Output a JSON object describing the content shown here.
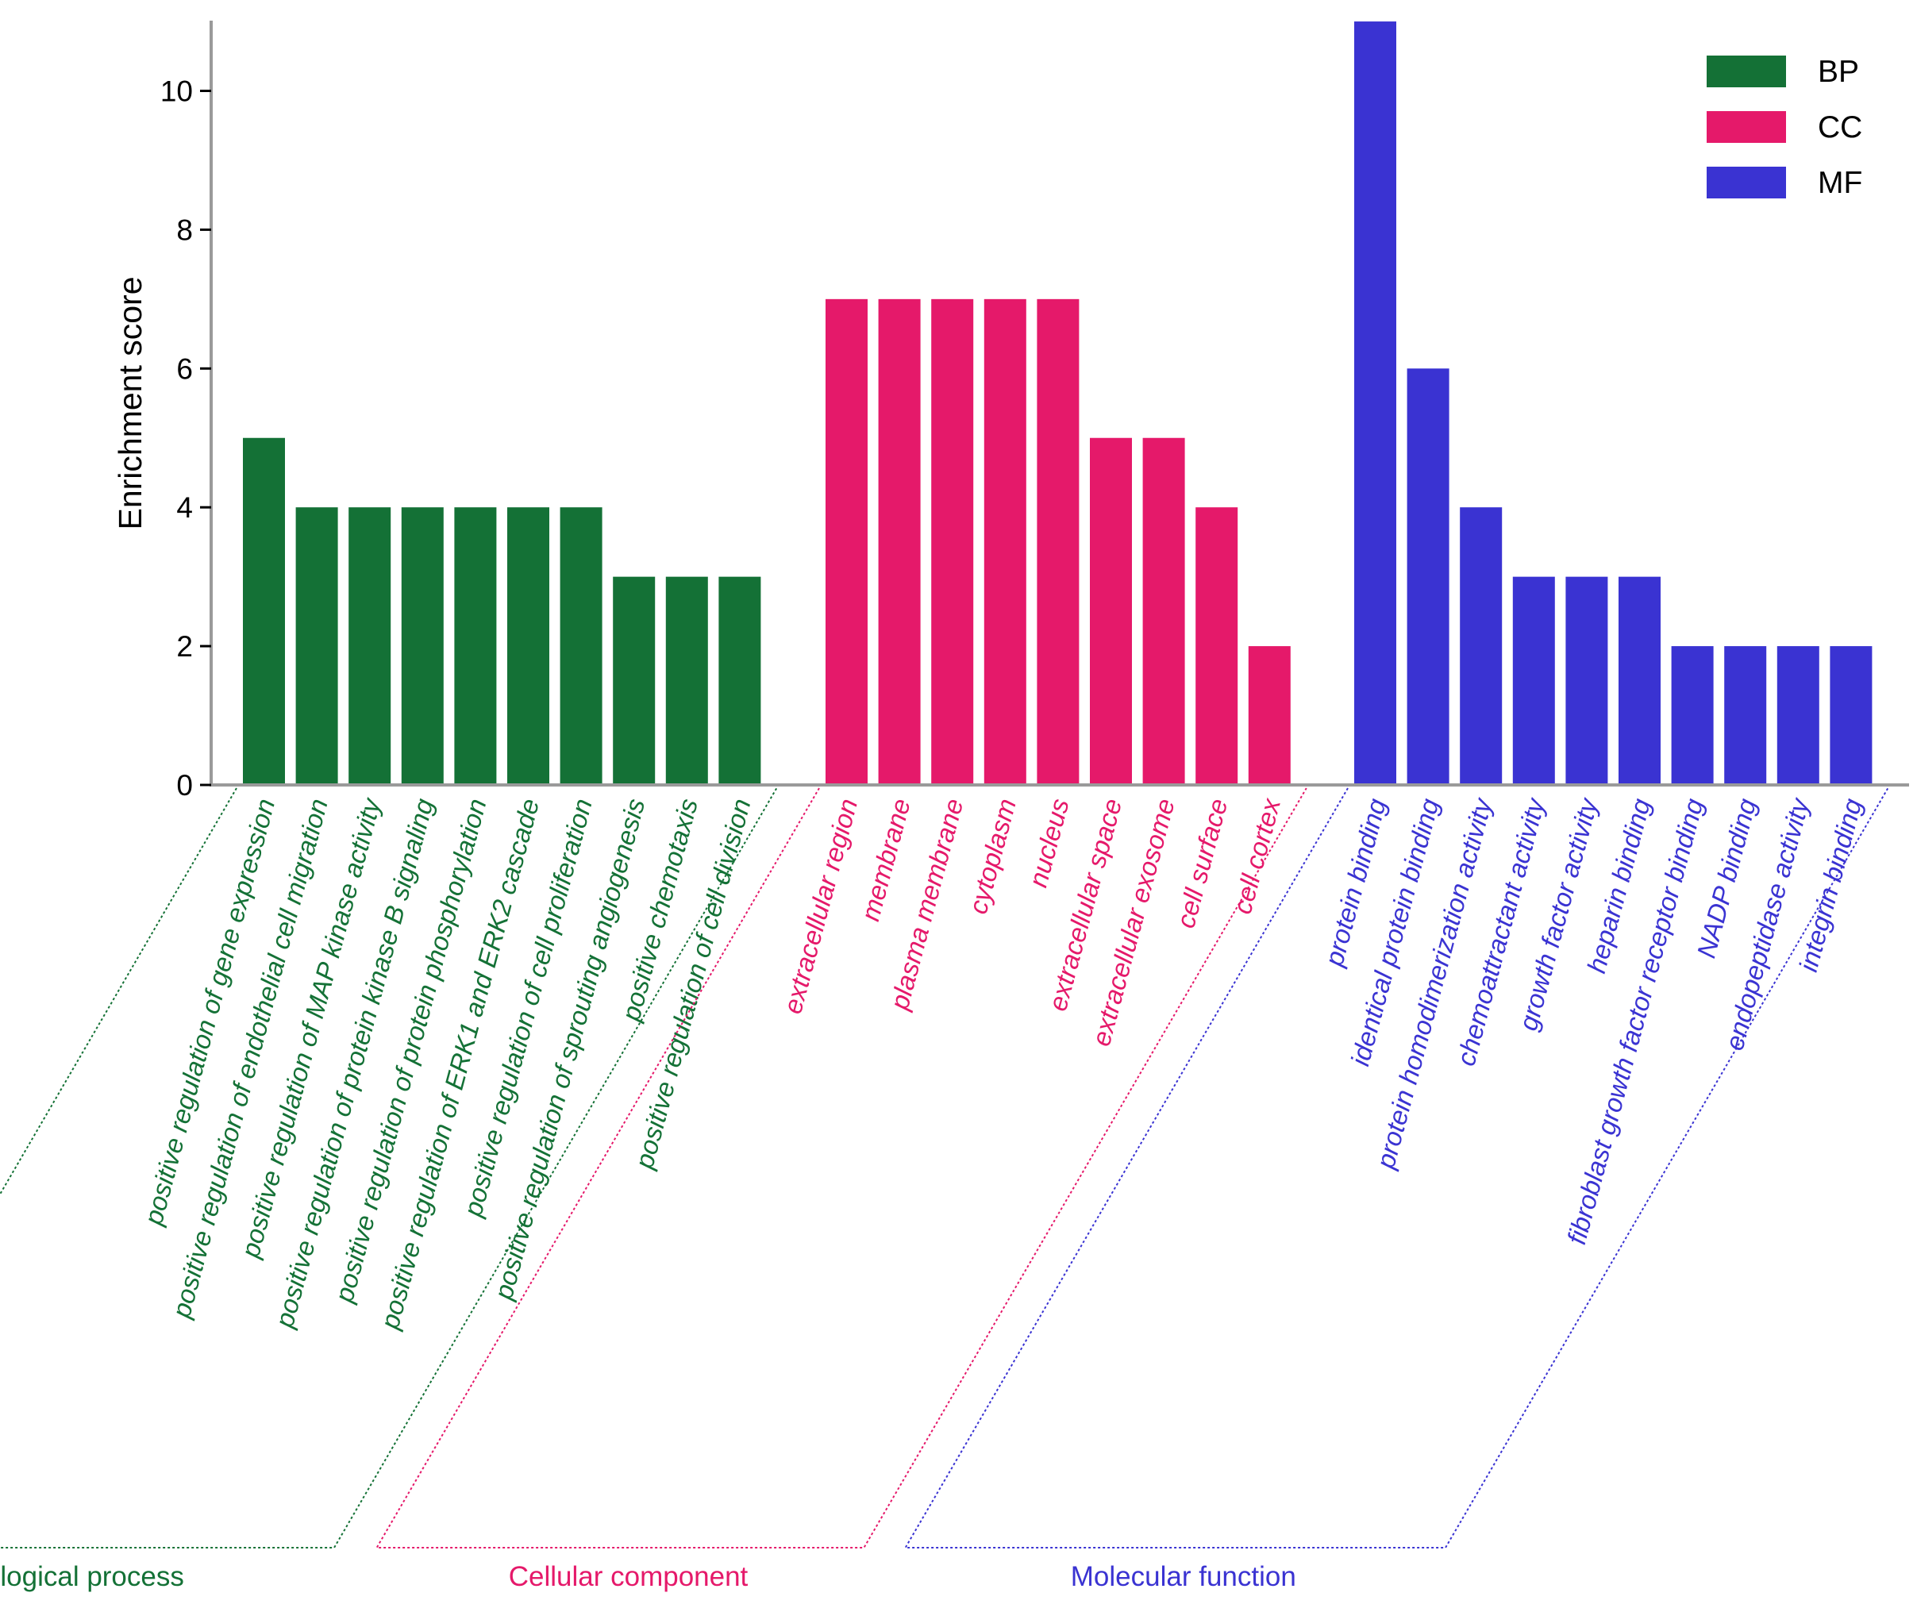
{
  "chart_data": {
    "type": "bar",
    "ylabel": "Enrichment score",
    "xlabel": "",
    "ylim": [
      0,
      11
    ],
    "yticks": [
      0,
      2,
      4,
      6,
      8,
      10
    ],
    "grid": false,
    "legend": {
      "placement": "top-right",
      "entries": [
        {
          "label": "BP",
          "color": "#147136"
        },
        {
          "label": "CC",
          "color": "#E5196A"
        },
        {
          "label": "MF",
          "color": "#3A33D2"
        }
      ]
    },
    "groups": [
      {
        "key": "BP",
        "name": "Biological process",
        "color": "#147136",
        "categories": [
          "positive regulation of gene expression",
          "positive regulation of endothelial cell migration",
          "positive regulation of MAP kinase activity",
          "positive regulation of protein kinase B signaling",
          "positive regulation of protein phosphorylation",
          "positive regulation of ERK1 and ERK2 cascade",
          "positive regulation of cell proliferation",
          "positive regulation of sprouting angiogenesis",
          "positive chemotaxis",
          "positive regulation of cell division"
        ],
        "values": [
          5,
          4,
          4,
          4,
          4,
          4,
          4,
          3,
          3,
          3
        ]
      },
      {
        "key": "CC",
        "name": "Cellular component",
        "color": "#E5196A",
        "categories": [
          "extracellular region",
          "membrane",
          "plasma membrane",
          "cytoplasm",
          "nucleus",
          "extracellular space",
          "extracellular exosome",
          "cell surface",
          "cell cortex"
        ],
        "values": [
          7,
          7,
          7,
          7,
          7,
          5,
          5,
          4,
          2
        ]
      },
      {
        "key": "MF",
        "name": "Molecular function",
        "color": "#3A33D2",
        "categories": [
          "protein binding",
          "identical protein binding",
          "protein homodimerization activity",
          "chemoattractant activity",
          "growth factor activity",
          "heparin binding",
          "fibroblast growth factor receptor binding",
          "NADP binding",
          "endopeptidase activity",
          "integrin binding"
        ],
        "values": [
          11,
          6,
          4,
          3,
          3,
          3,
          2,
          2,
          2,
          2
        ]
      }
    ]
  }
}
